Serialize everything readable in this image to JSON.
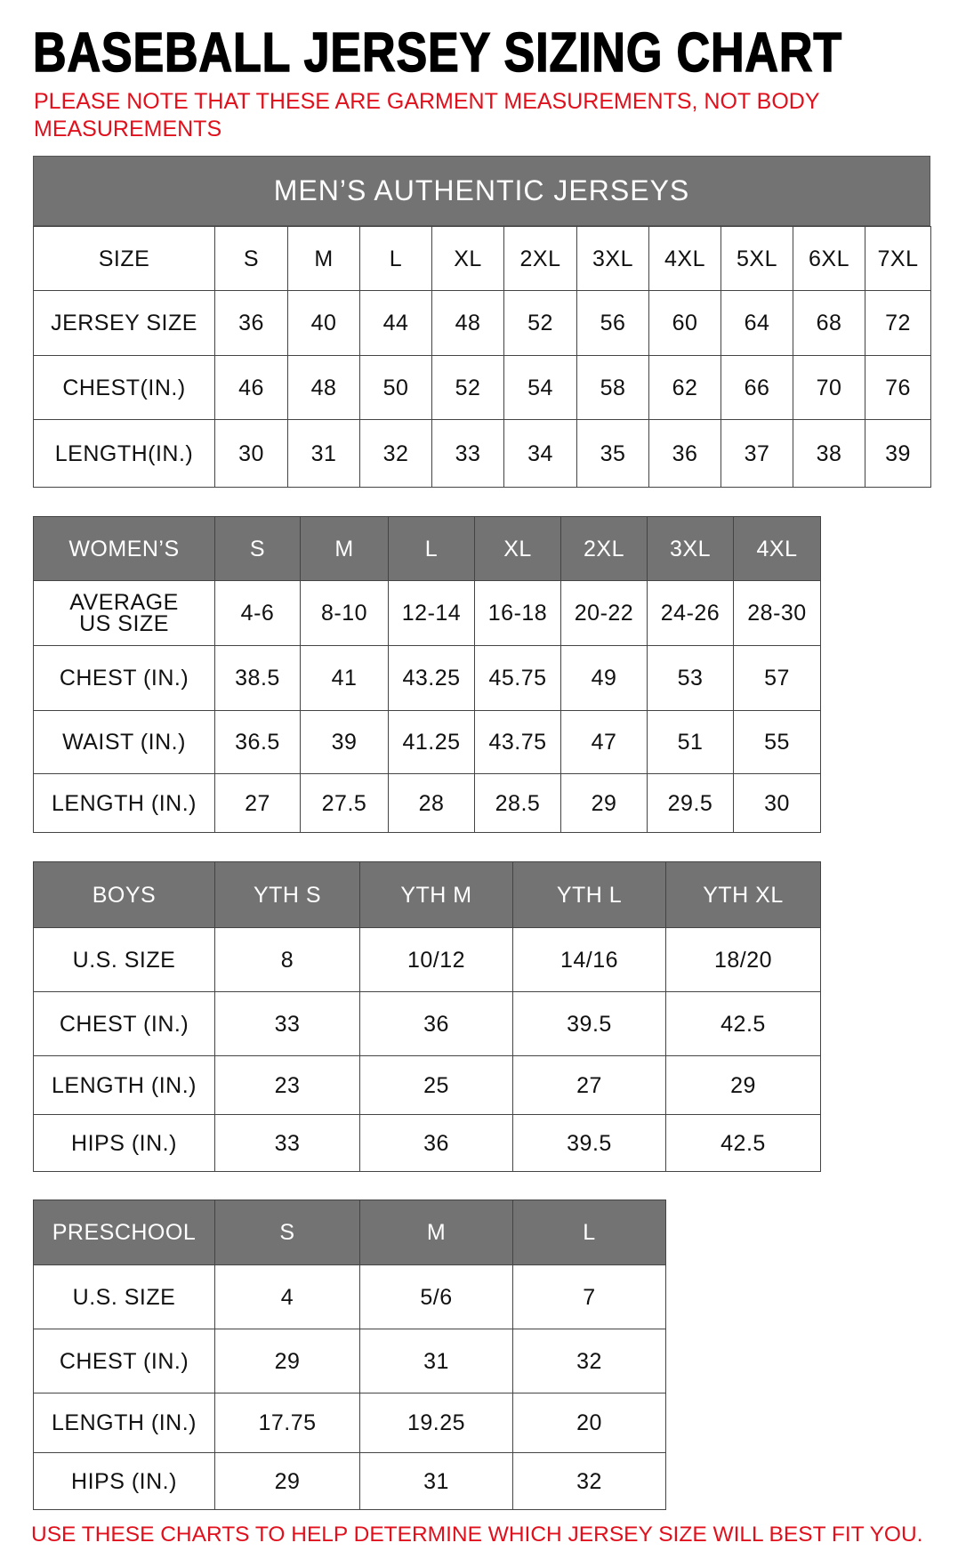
{
  "title": "BASEBALL JERSEY SIZING CHART",
  "note": "PLEASE NOTE THAT THESE ARE GARMENT MEASUREMENTS, NOT BODY MEASUREMENTS",
  "footer": "USE THESE CHARTS TO HELP DETERMINE WHICH JERSEY SIZE WILL BEST FIT YOU.",
  "colors": {
    "header_bg": "#737373",
    "note_red": "#e0101c"
  },
  "tables": [
    {
      "id": "mens",
      "banner": "MEN’S AUTHENTIC JERSEYS",
      "header_gray": false,
      "rows": [
        [
          "SIZE",
          "S",
          "M",
          "L",
          "XL",
          "2XL",
          "3XL",
          "4XL",
          "5XL",
          "6XL",
          "7XL"
        ],
        [
          "JERSEY SIZE",
          "36",
          "40",
          "44",
          "48",
          "52",
          "56",
          "60",
          "64",
          "68",
          "72"
        ],
        [
          "CHEST(IN.)",
          "46",
          "48",
          "50",
          "52",
          "54",
          "58",
          "62",
          "66",
          "70",
          "76"
        ],
        [
          "LENGTH(IN.)",
          "30",
          "31",
          "32",
          "33",
          "34",
          "35",
          "36",
          "37",
          "38",
          "39"
        ]
      ]
    },
    {
      "id": "womens",
      "header_gray": true,
      "rows": [
        [
          "WOMEN’S",
          "S",
          "M",
          "L",
          "XL",
          "2XL",
          "3XL",
          "4XL"
        ],
        [
          "AVERAGE US SIZE",
          "4-6",
          "8-10",
          "12-14",
          "16-18",
          "20-22",
          "24-26",
          "28-30"
        ],
        [
          "CHEST (IN.)",
          "38.5",
          "41",
          "43.25",
          "45.75",
          "49",
          "53",
          "57"
        ],
        [
          "WAIST (IN.)",
          "36.5",
          "39",
          "41.25",
          "43.75",
          "47",
          "51",
          "55"
        ],
        [
          "LENGTH (IN.)",
          "27",
          "27.5",
          "28",
          "28.5",
          "29",
          "29.5",
          "30"
        ]
      ]
    },
    {
      "id": "boys",
      "header_gray": true,
      "rows": [
        [
          "BOYS",
          "YTH S",
          "YTH M",
          "YTH L",
          "YTH XL"
        ],
        [
          "U.S. SIZE",
          "8",
          "10/12",
          "14/16",
          "18/20"
        ],
        [
          "CHEST (IN.)",
          "33",
          "36",
          "39.5",
          "42.5"
        ],
        [
          "LENGTH (IN.)",
          "23",
          "25",
          "27",
          "29"
        ],
        [
          "HIPS (IN.)",
          "33",
          "36",
          "39.5",
          "42.5"
        ]
      ]
    },
    {
      "id": "preschool",
      "header_gray": true,
      "rows": [
        [
          "PRESCHOOL",
          "S",
          "M",
          "L"
        ],
        [
          "U.S. SIZE",
          "4",
          "5/6",
          "7"
        ],
        [
          "CHEST (IN.)",
          "29",
          "31",
          "32"
        ],
        [
          "LENGTH (IN.)",
          "17.75",
          "19.25",
          "20"
        ],
        [
          "HIPS (IN.)",
          "29",
          "31",
          "32"
        ]
      ]
    }
  ]
}
